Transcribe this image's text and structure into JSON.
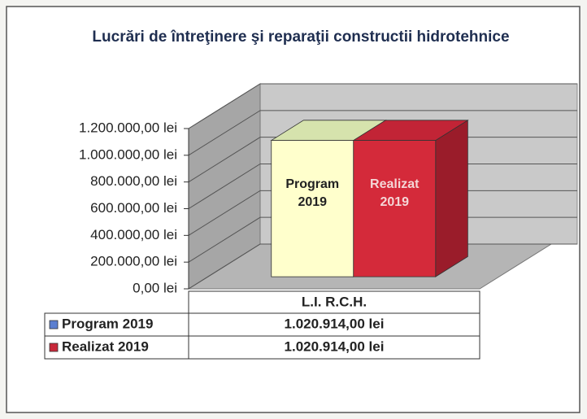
{
  "chart_data": {
    "type": "bar3d",
    "title": "Lucrări de întreţinere şi reparaţii constructii hidrotehnice",
    "categories": [
      "L.I. R.C.H."
    ],
    "series": [
      {
        "name": "Program 2019",
        "color": "#ffffcc",
        "top_color": "#d6e3ad",
        "side_color": "#c9c98f",
        "key_color": "#5b7fd0",
        "values": [
          1020914
        ],
        "value_labels": [
          "1.020.914,00 lei"
        ]
      },
      {
        "name": "Realizat 2019",
        "color": "#d42a3a",
        "top_color": "#c22436",
        "side_color": "#9a1c2a",
        "key_color": "#c8283a",
        "values": [
          1020914
        ],
        "value_labels": [
          "1.020.914,00 lei"
        ]
      }
    ],
    "ylim": [
      0,
      1200000
    ],
    "yticks": [
      {
        "value": 0,
        "label": "0,00 lei"
      },
      {
        "value": 200000,
        "label": "200.000,00 lei"
      },
      {
        "value": 400000,
        "label": "400.000,00 lei"
      },
      {
        "value": 600000,
        "label": "600.000,00 lei"
      },
      {
        "value": 800000,
        "label": "800.000,00 lei"
      },
      {
        "value": 1000000,
        "label": "1.000.000,00 lei"
      },
      {
        "value": 1200000,
        "label": "1.200.000,00 lei"
      }
    ],
    "grid": true
  }
}
